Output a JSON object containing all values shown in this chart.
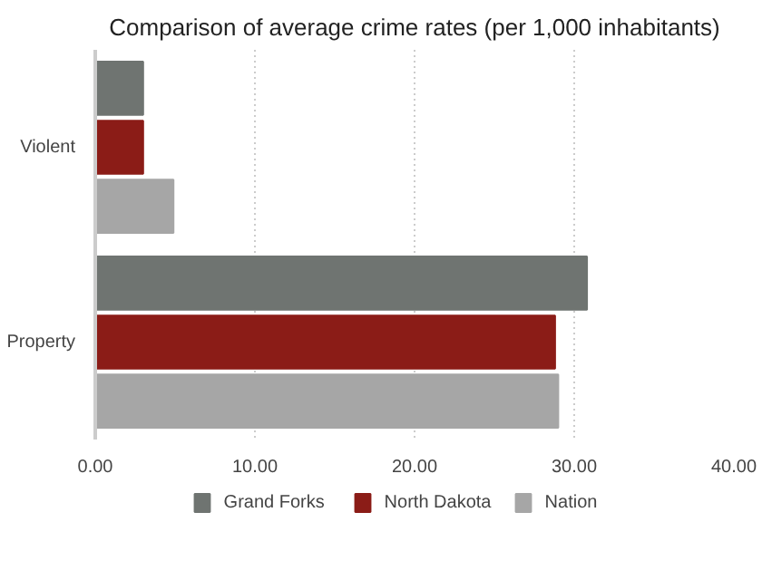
{
  "chart_data": {
    "type": "bar",
    "orientation": "horizontal",
    "title": "Comparison of average crime rates (per 1,000 inhabitants)",
    "categories": [
      "Violent",
      "Property"
    ],
    "series": [
      {
        "name": "Grand Forks",
        "color": "#6f7471",
        "values": [
          3.0,
          30.8
        ]
      },
      {
        "name": "North Dakota",
        "color": "#8b1c17",
        "values": [
          3.0,
          28.8
        ]
      },
      {
        "name": "Nation",
        "color": "#a6a6a6",
        "values": [
          4.9,
          29.0
        ]
      }
    ],
    "xlim": [
      0,
      40
    ],
    "xticks": [
      {
        "value": 0,
        "label": "0.00"
      },
      {
        "value": 10,
        "label": "10.00"
      },
      {
        "value": 20,
        "label": "20.00"
      },
      {
        "value": 30,
        "label": "30.00"
      },
      {
        "value": 40,
        "label": "40.00"
      }
    ],
    "grid": "x",
    "legend": "bottom"
  }
}
